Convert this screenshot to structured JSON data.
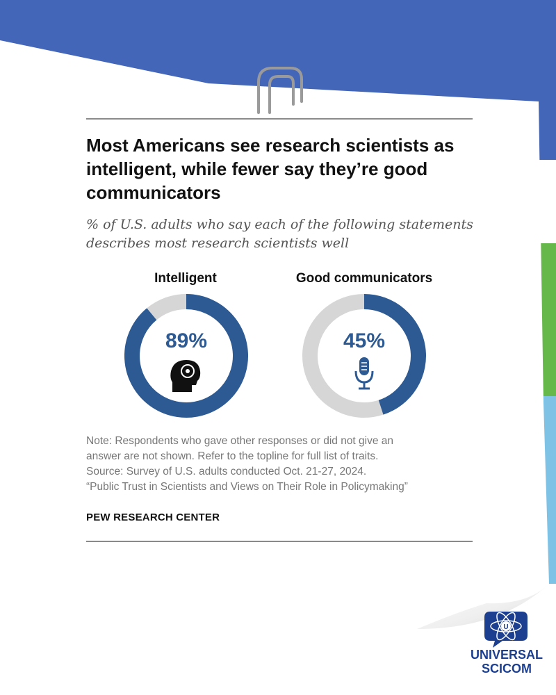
{
  "title": "Most Americans see research scientists as intelligent, while fewer say they’re good communicators",
  "subtitle": "% of U.S. adults who say each of the following statements describes most research scientists well",
  "chart_data": {
    "type": "pie",
    "charts": [
      {
        "label": "Intelligent",
        "value": 89,
        "value_label": "89%",
        "icon": "head-icon"
      },
      {
        "label": "Good communicators",
        "value": 45,
        "value_label": "45%",
        "icon": "microphone-icon"
      }
    ],
    "colors": {
      "filled": "#2d5a93",
      "remaining": "#d6d6d6"
    }
  },
  "note_lines": [
    "Note: Respondents who gave other responses or did not give an",
    "answer are not shown. Refer to the topline for full list of traits.",
    "Source: Survey of U.S. adults conducted Oct. 21-27, 2024.",
    "“Public Trust in Scientists and Views on Their Role in Policymaking”"
  ],
  "source_org": "PEW RESEARCH CENTER",
  "logo": {
    "line1": "UNIVERSAL",
    "line2": "SCICOM"
  },
  "colors": {
    "background_blue": "#4466b8",
    "green": "#66b84a",
    "light_blue": "#7ec3e6",
    "logo_blue": "#1d3f8f"
  }
}
